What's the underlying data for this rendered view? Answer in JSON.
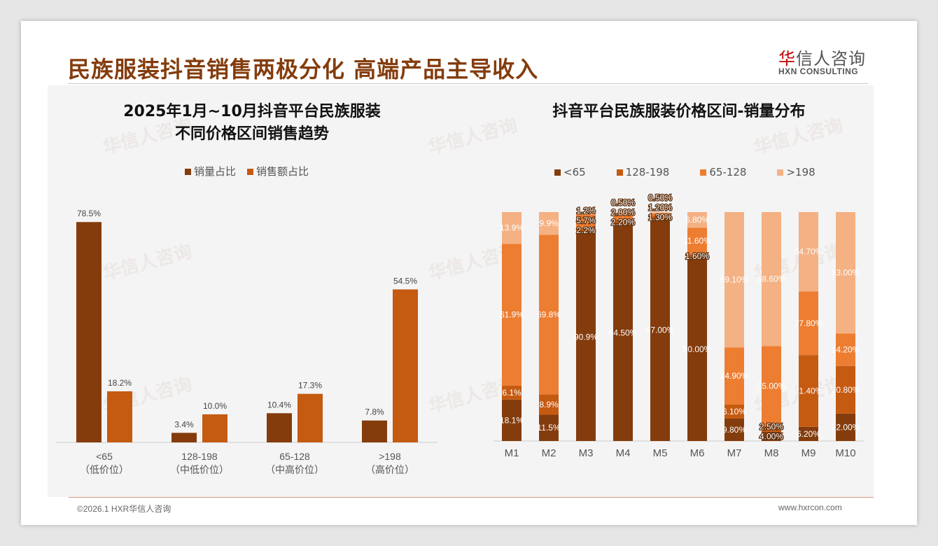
{
  "header": {
    "title": "民族服装抖音销售两极分化 高端产品主导收入",
    "logo_cn_mark": "华",
    "logo_cn_rest": "信人咨询",
    "logo_en": "HXN CONSULTING"
  },
  "footer": {
    "copyright": "©2026.1 HXR华信人咨询",
    "website": "www.hxrcon.com"
  },
  "watermark": "华信人咨询",
  "colors": {
    "lt65": "#843c0c",
    "r128_198": "#c55a11",
    "r65_128": "#ed7d31",
    "gt198": "#f4b183"
  },
  "chart_data": [
    {
      "type": "bar",
      "title_line1": "2025年1月~10月抖音平台民族服装",
      "title_line2": "不同价格区间销售趋势",
      "categories": [
        "<65",
        "128-198",
        "65-128",
        ">198"
      ],
      "sublabels": [
        "（低价位）",
        "（中低价位）",
        "（中高价位）",
        "（高价位）"
      ],
      "series": [
        {
          "name": "销量占比",
          "color": "#843c0c",
          "values": [
            78.5,
            3.4,
            10.4,
            7.8
          ],
          "labels": [
            "78.5%",
            "3.4%",
            "10.4%",
            "7.8%"
          ]
        },
        {
          "name": "销售额占比",
          "color": "#c55a11",
          "values": [
            18.2,
            10.0,
            17.3,
            54.5
          ],
          "labels": [
            "18.2%",
            "10.0%",
            "17.3%",
            "54.5%"
          ]
        }
      ],
      "legend": "top",
      "ylim": [
        0,
        80
      ]
    },
    {
      "type": "bar",
      "stacked": true,
      "title": "抖音平台民族服装价格区间-销量分布",
      "categories": [
        "M1",
        "M2",
        "M3",
        "M4",
        "M5",
        "M6",
        "M7",
        "M8",
        "M9",
        "M10"
      ],
      "series": [
        {
          "name": "<65",
          "color": "#843c0c",
          "values": [
            18.1,
            11.5,
            90.9,
            94.5,
            97.0,
            80.0,
            9.8,
            4.0,
            6.2,
            12.0
          ],
          "labels": [
            "18.1%",
            "11.5%",
            "90.9%",
            "94.50%",
            "97.00%",
            "80.00%",
            "9.80%",
            "4.00%",
            "6.20%",
            "12.00%"
          ]
        },
        {
          "name": "128-198",
          "color": "#c55a11",
          "values": [
            6.1,
            8.9,
            2.2,
            2.2,
            1.3,
            1.6,
            6.1,
            2.5,
            31.4,
            20.8
          ],
          "labels": [
            "6.1%",
            "8.9%",
            "2.2%",
            "2.20%",
            "1.30%",
            "1.60%",
            "6.10%",
            "2.50%",
            "31.40%",
            "20.80%"
          ]
        },
        {
          "name": "65-128",
          "color": "#ed7d31",
          "values": [
            61.9,
            69.8,
            5.7,
            2.8,
            1.2,
            11.6,
            24.9,
            35.0,
            27.8,
            14.2
          ],
          "labels": [
            "61.9%",
            "69.8%",
            "5.7%",
            "2.80%",
            "1.20%",
            "11.60%",
            "24.90%",
            "35.00%",
            "27.80%",
            "14.20%"
          ]
        },
        {
          "name": ">198",
          "color": "#f4b183",
          "values": [
            13.9,
            9.9,
            1.2,
            0.5,
            0.5,
            6.8,
            59.1,
            58.6,
            34.7,
            53.0
          ],
          "labels": [
            "13.9%",
            "9.9%",
            "1.2%",
            "0.50%",
            "0.50%",
            "6.80%",
            "59.10%",
            "58.60%",
            "34.70%",
            "53.00%"
          ]
        }
      ],
      "legend": "top",
      "ylim": [
        0,
        100
      ]
    }
  ]
}
